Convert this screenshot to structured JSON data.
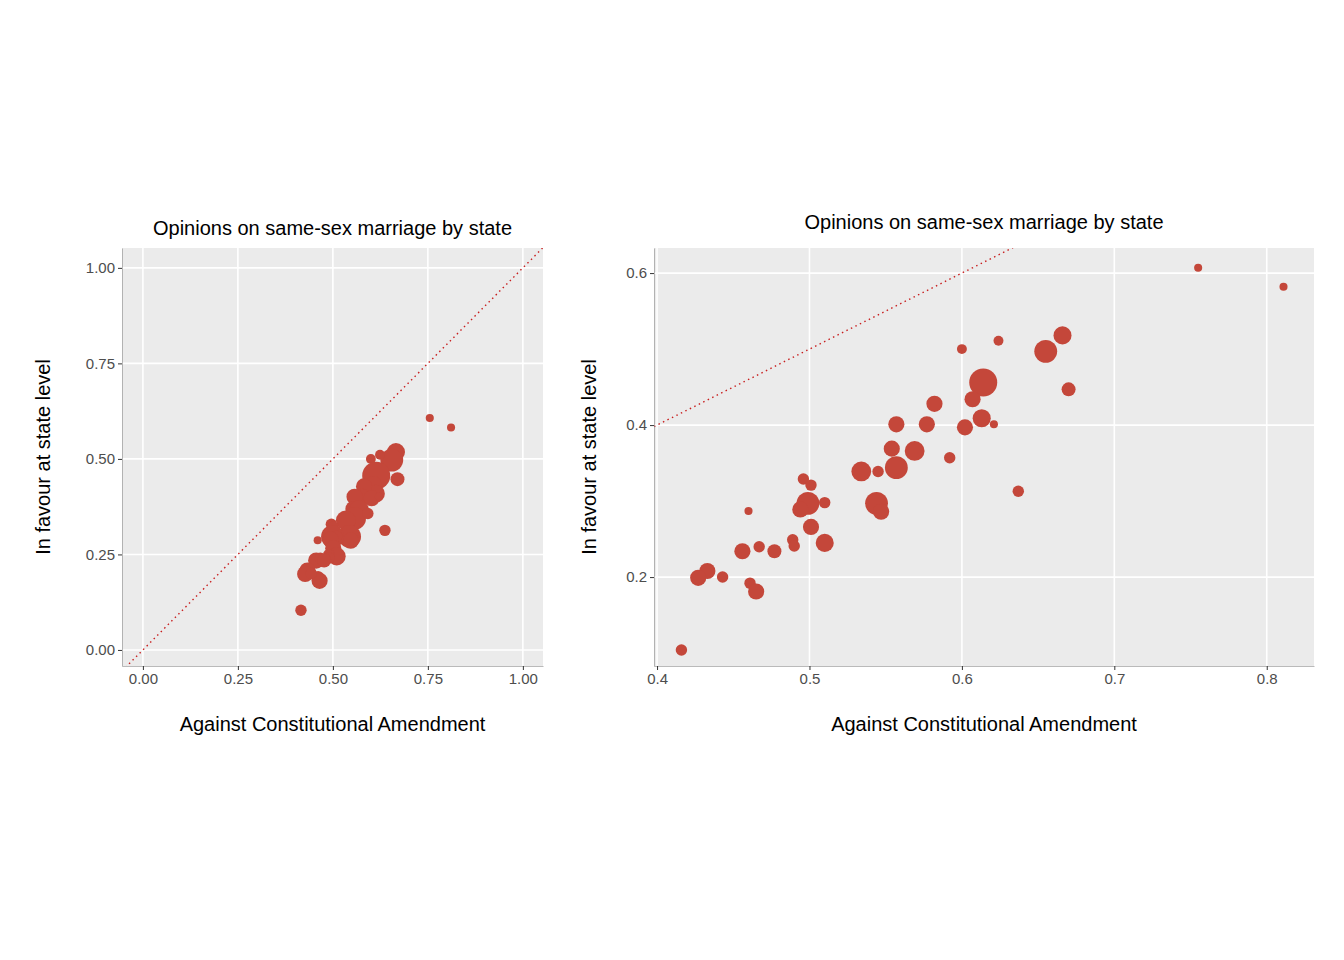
{
  "chart_data": [
    {
      "type": "scatter",
      "title": "Opinions on same-sex marriage by state",
      "x_label": "Against Constitutional Amendment",
      "y_label": "In favour at state level",
      "color": "#c4473a",
      "grid": true,
      "xlim": [
        -0.055,
        1.053
      ],
      "ylim": [
        -0.042,
        1.052
      ],
      "xticks": [
        {
          "value": 0,
          "label": "0.00"
        },
        {
          "value": 0.25,
          "label": "0.25"
        },
        {
          "value": 0.5,
          "label": "0.50"
        },
        {
          "value": 0.75,
          "label": "0.75"
        },
        {
          "value": 1,
          "label": "1.00"
        }
      ],
      "yticks": [
        {
          "value": 0,
          "label": "0.00"
        },
        {
          "value": 0.25,
          "label": "0.25"
        },
        {
          "value": 0.5,
          "label": "0.50"
        },
        {
          "value": 0.75,
          "label": "0.75"
        },
        {
          "value": 1,
          "label": "1.00"
        }
      ],
      "x": [
        0.755,
        0.811,
        0.666,
        0.655,
        0.624,
        0.6,
        0.614,
        0.607,
        0.613,
        0.67,
        0.582,
        0.577,
        0.602,
        0.621,
        0.557,
        0.554,
        0.569,
        0.557,
        0.545,
        0.534,
        0.592,
        0.637,
        0.544,
        0.547,
        0.496,
        0.501,
        0.499,
        0.51,
        0.494,
        0.501,
        0.51,
        0.489,
        0.49,
        0.46,
        0.456,
        0.467,
        0.477,
        0.461,
        0.465,
        0.433,
        0.427,
        0.443,
        0.416
      ],
      "y": [
        0.607,
        0.582,
        0.518,
        0.497,
        0.511,
        0.5,
        0.456,
        0.434,
        0.409,
        0.447,
        0.428,
        0.401,
        0.397,
        0.401,
        0.401,
        0.369,
        0.366,
        0.344,
        0.339,
        0.339,
        0.357,
        0.313,
        0.297,
        0.286,
        0.329,
        0.321,
        0.297,
        0.298,
        0.289,
        0.266,
        0.245,
        0.249,
        0.241,
        0.287,
        0.234,
        0.24,
        0.234,
        0.192,
        0.181,
        0.208,
        0.199,
        0.2,
        0.104
      ],
      "sizes": [
        1,
        1,
        5,
        8,
        1.5,
        1.5,
        12,
        4,
        5,
        3,
        4,
        4,
        4,
        1,
        4,
        4,
        6,
        8,
        2,
        6,
        2,
        2,
        8,
        4,
        2,
        2,
        8,
        2,
        4,
        4,
        5,
        2,
        2,
        1,
        4,
        2,
        3,
        2,
        4,
        4,
        4,
        2,
        2
      ]
    },
    {
      "type": "scatter",
      "title": "Opinions on same-sex marriage by state",
      "x_label": "Against Constitutional Amendment",
      "y_label": "In favour at state level",
      "color": "#c4473a",
      "grid": true,
      "xlim": [
        0.398,
        0.831
      ],
      "ylim": [
        0.083,
        0.633
      ],
      "xticks": [
        0.4,
        0.5,
        0.6,
        0.7,
        0.8
      ],
      "yticks": [
        0.2,
        0.4,
        0.6
      ],
      "x": [
        0.755,
        0.811,
        0.666,
        0.655,
        0.624,
        0.6,
        0.614,
        0.607,
        0.613,
        0.67,
        0.582,
        0.577,
        0.602,
        0.621,
        0.557,
        0.554,
        0.569,
        0.557,
        0.545,
        0.534,
        0.592,
        0.637,
        0.544,
        0.547,
        0.496,
        0.501,
        0.499,
        0.51,
        0.494,
        0.501,
        0.51,
        0.489,
        0.49,
        0.46,
        0.456,
        0.467,
        0.477,
        0.461,
        0.465,
        0.433,
        0.427,
        0.443,
        0.416
      ],
      "y": [
        0.607,
        0.582,
        0.518,
        0.497,
        0.511,
        0.5,
        0.456,
        0.434,
        0.409,
        0.447,
        0.428,
        0.401,
        0.397,
        0.401,
        0.401,
        0.369,
        0.366,
        0.344,
        0.339,
        0.339,
        0.357,
        0.313,
        0.297,
        0.286,
        0.329,
        0.321,
        0.297,
        0.298,
        0.289,
        0.266,
        0.245,
        0.249,
        0.241,
        0.287,
        0.234,
        0.24,
        0.234,
        0.192,
        0.181,
        0.208,
        0.199,
        0.2,
        0.104
      ],
      "sizes": [
        1,
        1,
        5,
        8,
        1.5,
        1.5,
        12,
        4,
        5,
        3,
        4,
        4,
        4,
        1,
        4,
        4,
        6,
        8,
        2,
        6,
        2,
        2,
        8,
        4,
        2,
        2,
        8,
        2,
        4,
        4,
        5,
        2,
        2,
        1,
        4,
        2,
        3,
        2,
        4,
        4,
        4,
        2,
        2
      ]
    }
  ]
}
